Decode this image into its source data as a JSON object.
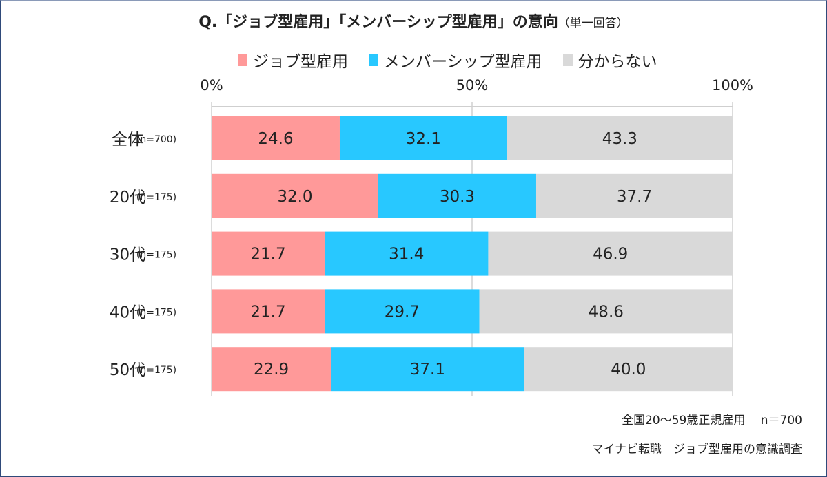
{
  "chart_data": {
    "type": "bar",
    "orientation": "horizontal",
    "stacked": "percent",
    "title": "Q.「ジョブ型雇用」「メンバーシップ型雇用」の意向",
    "subtitle": "（単一回答）",
    "categories": [
      "全体",
      "20代",
      "30代",
      "40代",
      "50代"
    ],
    "category_notes": [
      "(n=700)",
      "(n=175)",
      "(n=175)",
      "(n=175)",
      "(n=175)"
    ],
    "series": [
      {
        "name": "ジョブ型雇用",
        "color": "#FF9999",
        "values": [
          24.6,
          32.0,
          21.7,
          21.7,
          22.9
        ]
      },
      {
        "name": "メンバーシップ型雇用",
        "color": "#28C8FF",
        "values": [
          32.1,
          30.3,
          31.4,
          29.7,
          37.1
        ]
      },
      {
        "name": "分からない",
        "color": "#D9D9D9",
        "values": [
          43.3,
          37.7,
          46.9,
          48.6,
          40.0
        ]
      }
    ],
    "xlim": [
      0,
      100
    ],
    "x_ticks": [
      "0%",
      "50%",
      "100%"
    ],
    "grid": true,
    "legend_position": "top"
  },
  "footnotes": {
    "line1": "全国20～59歳正規雇用　 n＝700",
    "line2": "マイナビ転職　ジョブ型雇用の意識調査"
  }
}
